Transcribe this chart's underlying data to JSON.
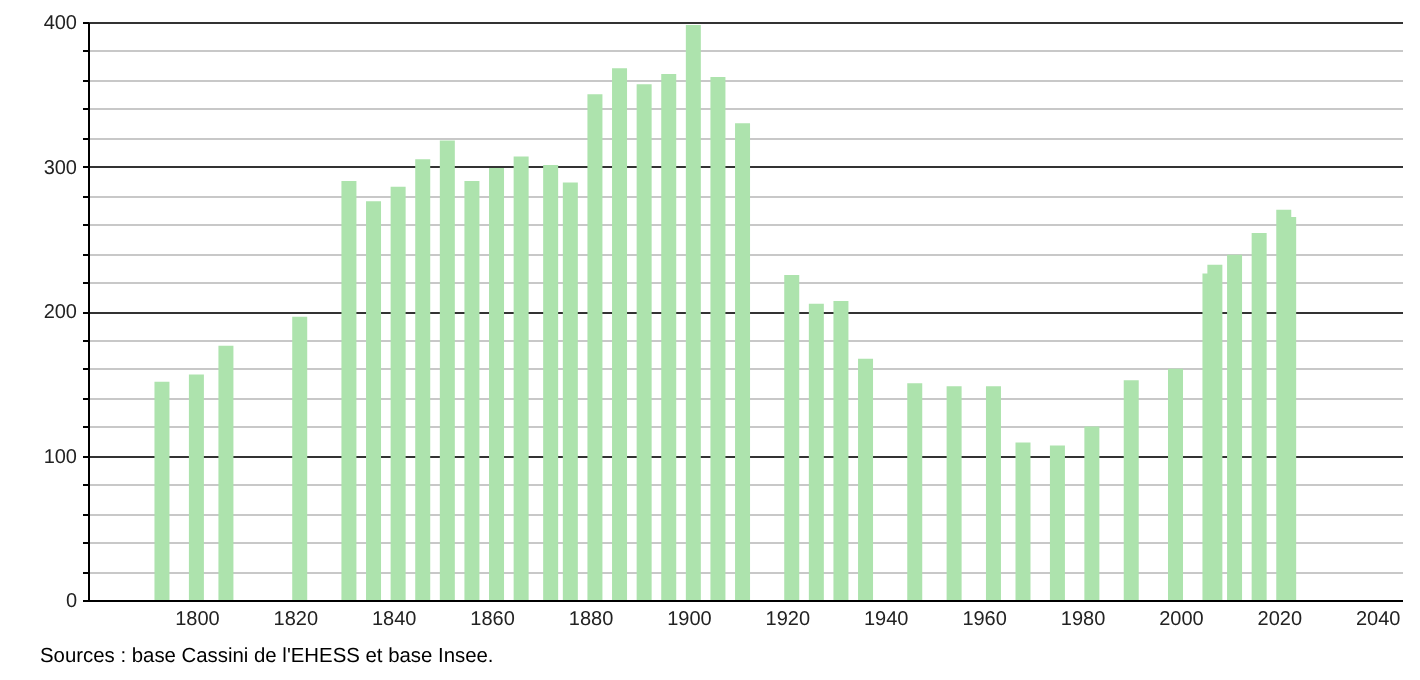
{
  "chart_data": {
    "type": "bar",
    "annotations": [
      "Sources : base Cassini de l'EHESS et base Insee."
    ],
    "x": [
      1793,
      1800,
      1806,
      1821,
      1831,
      1836,
      1841,
      1846,
      1851,
      1856,
      1861,
      1866,
      1872,
      1876,
      1881,
      1886,
      1891,
      1896,
      1901,
      1906,
      1911,
      1921,
      1926,
      1931,
      1936,
      1946,
      1954,
      1962,
      1968,
      1975,
      1982,
      1990,
      1999,
      2006,
      2007,
      2011,
      2016,
      2021,
      2022
    ],
    "values": [
      151,
      156,
      176,
      196,
      290,
      276,
      286,
      305,
      318,
      290,
      299,
      307,
      301,
      289,
      350,
      368,
      357,
      364,
      398,
      362,
      330,
      225,
      205,
      207,
      167,
      150,
      148,
      148,
      109,
      107,
      120,
      152,
      160,
      226,
      232,
      239,
      254,
      270,
      265
    ],
    "color": "#ade3ad",
    "xlim": [
      1780,
      2043
    ],
    "xticks": [
      1800,
      1820,
      1840,
      1860,
      1880,
      1900,
      1920,
      1940,
      1960,
      1980,
      2000,
      2020,
      2040
    ],
    "ylim": [
      0,
      400
    ],
    "yticks": [
      0,
      {
        "value": 20,
        "label": null
      },
      {
        "value": 40,
        "label": null
      },
      {
        "value": 60,
        "label": null
      },
      {
        "value": 80,
        "label": null
      },
      100,
      {
        "value": 120,
        "label": null
      },
      {
        "value": 140,
        "label": null
      },
      {
        "value": 160,
        "label": null
      },
      {
        "value": 180,
        "label": null
      },
      200,
      {
        "value": 220,
        "label": null
      },
      {
        "value": 240,
        "label": null
      },
      {
        "value": 260,
        "label": null
      },
      {
        "value": 280,
        "label": null
      },
      300,
      {
        "value": 320,
        "label": null
      },
      {
        "value": 340,
        "label": null
      },
      {
        "value": 360,
        "label": null
      },
      {
        "value": 380,
        "label": null
      },
      400
    ],
    "grid": "y"
  }
}
